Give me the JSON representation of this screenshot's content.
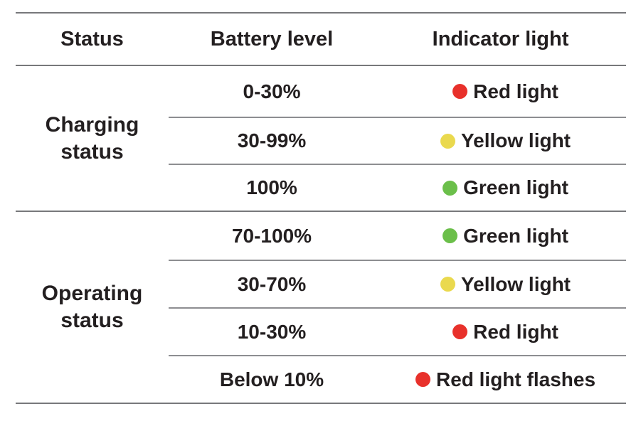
{
  "table": {
    "headers": {
      "status": "Status",
      "battery": "Battery level",
      "indicator": "Indicator light"
    },
    "groups": [
      {
        "status": "Charging status",
        "rows": [
          {
            "battery": "0-30%",
            "indicator": "Red light",
            "dot": "red",
            "dot_color": "#e8312b"
          },
          {
            "battery": "30-99%",
            "indicator": "Yellow light",
            "dot": "yellow",
            "dot_color": "#ead94e"
          },
          {
            "battery": "100%",
            "indicator": "Green light",
            "dot": "green",
            "dot_color": "#6bbf4a"
          }
        ]
      },
      {
        "status": "Operating status",
        "rows": [
          {
            "battery": "70-100%",
            "indicator": "Green light",
            "dot": "green",
            "dot_color": "#6bbf4a"
          },
          {
            "battery": "30-70%",
            "indicator": "Yellow light",
            "dot": "yellow",
            "dot_color": "#ead94e"
          },
          {
            "battery": "10-30%",
            "indicator": "Red light",
            "dot": "red",
            "dot_color": "#e8312b"
          },
          {
            "battery": "Below 10%",
            "indicator": "Red light flashes",
            "dot": "red",
            "dot_color": "#e8312b"
          }
        ]
      }
    ],
    "colors": {
      "red": "#e8312b",
      "yellow": "#ead94e",
      "green": "#6bbf4a",
      "rule_line": "#77787b",
      "inner_line": "#8d8e91",
      "text": "#231f20"
    }
  }
}
